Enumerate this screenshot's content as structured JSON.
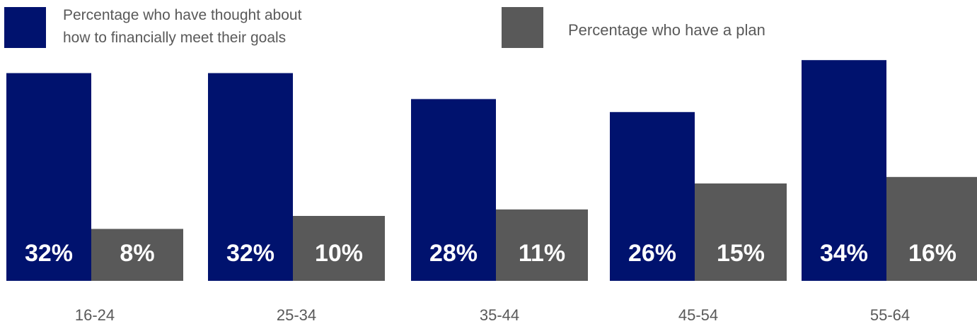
{
  "chart_data": {
    "type": "bar",
    "categories": [
      "16-24",
      "25-34",
      "35-44",
      "45-54",
      "55-64"
    ],
    "series": [
      {
        "name": "Percentage who have thought about how to financially meet their goals",
        "values": [
          32,
          32,
          28,
          26,
          34
        ],
        "labels": [
          "32%",
          "32%",
          "28%",
          "26%",
          "34%"
        ],
        "color": "#00126E"
      },
      {
        "name": "Percentage who have a plan",
        "values": [
          8,
          10,
          11,
          15,
          16
        ],
        "labels": [
          "8%",
          "10%",
          "11%",
          "15%",
          "16%"
        ],
        "color": "#595959"
      }
    ],
    "legend": {
      "series1_line1": "Percentage who have thought about",
      "series1_line2": "how to financially meet their goals",
      "series2": "Percentage who have a plan",
      "placement": "top"
    },
    "title": "",
    "xlabel": "",
    "ylabel": "",
    "grid": false
  }
}
